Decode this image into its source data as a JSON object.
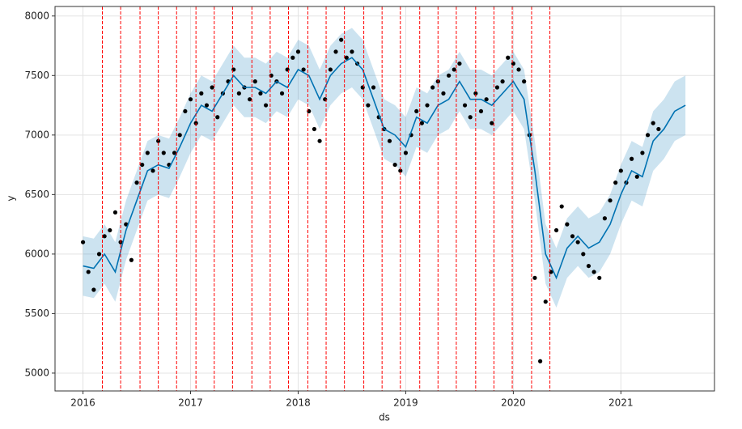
{
  "chart_data": {
    "type": "forecast",
    "x_label": "ds",
    "y_label": "y",
    "xlim": [
      2015.74,
      2021.87
    ],
    "ylim": [
      4850,
      8080
    ],
    "xticks": [
      2016,
      2017,
      2018,
      2019,
      2020,
      2021
    ],
    "yticks": [
      5000,
      5500,
      6000,
      6500,
      7000,
      7500,
      8000
    ],
    "grid": true,
    "observed": {
      "color": "#000000",
      "x": [
        2016.0,
        2016.05,
        2016.1,
        2016.15,
        2016.2,
        2016.25,
        2016.3,
        2016.35,
        2016.4,
        2016.45,
        2016.5,
        2016.55,
        2016.6,
        2016.65,
        2016.7,
        2016.75,
        2016.8,
        2016.85,
        2016.9,
        2016.95,
        2017.0,
        2017.05,
        2017.1,
        2017.15,
        2017.2,
        2017.25,
        2017.3,
        2017.35,
        2017.4,
        2017.45,
        2017.5,
        2017.55,
        2017.6,
        2017.65,
        2017.7,
        2017.75,
        2017.8,
        2017.85,
        2017.9,
        2017.95,
        2018.0,
        2018.05,
        2018.1,
        2018.15,
        2018.2,
        2018.25,
        2018.3,
        2018.35,
        2018.4,
        2018.45,
        2018.5,
        2018.55,
        2018.6,
        2018.65,
        2018.7,
        2018.75,
        2018.8,
        2018.85,
        2018.9,
        2018.95,
        2019.0,
        2019.05,
        2019.1,
        2019.15,
        2019.2,
        2019.25,
        2019.3,
        2019.35,
        2019.4,
        2019.45,
        2019.5,
        2019.55,
        2019.6,
        2019.65,
        2019.7,
        2019.75,
        2019.8,
        2019.85,
        2019.9,
        2019.95,
        2020.0,
        2020.05,
        2020.1,
        2020.15,
        2020.2,
        2020.25,
        2020.3,
        2020.35,
        2020.4,
        2020.45,
        2020.5,
        2020.55,
        2020.6,
        2020.65,
        2020.7,
        2020.75,
        2020.8,
        2020.85,
        2020.9,
        2020.95,
        2021.0,
        2021.05,
        2021.1,
        2021.15,
        2021.2,
        2021.25,
        2021.3,
        2021.35
      ],
      "y": [
        6100,
        5850,
        5700,
        6000,
        6150,
        6200,
        6350,
        6100,
        6250,
        5950,
        6600,
        6750,
        6850,
        6700,
        6950,
        6850,
        6750,
        6850,
        7000,
        7200,
        7300,
        7100,
        7350,
        7250,
        7400,
        7150,
        7350,
        7450,
        7550,
        7350,
        7400,
        7300,
        7450,
        7350,
        7250,
        7500,
        7450,
        7350,
        7550,
        7650,
        7700,
        7550,
        7200,
        7050,
        6950,
        7300,
        7550,
        7700,
        7800,
        7650,
        7700,
        7600,
        7400,
        7250,
        7400,
        7150,
        7050,
        6950,
        6750,
        6700,
        6850,
        7000,
        7200,
        7100,
        7250,
        7400,
        7450,
        7350,
        7500,
        7550,
        7600,
        7250,
        7150,
        7350,
        7200,
        7300,
        7100,
        7400,
        7450,
        7650,
        7600,
        7550,
        7450,
        7000,
        5800,
        5100,
        5600,
        5850,
        6200,
        6400,
        6250,
        6150,
        6100,
        6000,
        5900,
        5850,
        5800,
        6300,
        6450,
        6600,
        6700,
        6600,
        6800,
        6650,
        6850,
        7000,
        7100,
        7050
      ]
    },
    "forecast": {
      "color": "#0072b2",
      "x": [
        2016.0,
        2016.1,
        2016.2,
        2016.3,
        2016.4,
        2016.5,
        2016.6,
        2016.7,
        2016.8,
        2016.9,
        2017.0,
        2017.1,
        2017.2,
        2017.3,
        2017.4,
        2017.5,
        2017.6,
        2017.7,
        2017.8,
        2017.9,
        2018.0,
        2018.1,
        2018.2,
        2018.3,
        2018.4,
        2018.5,
        2018.6,
        2018.7,
        2018.8,
        2018.9,
        2019.0,
        2019.1,
        2019.2,
        2019.3,
        2019.4,
        2019.5,
        2019.6,
        2019.7,
        2019.8,
        2019.9,
        2020.0,
        2020.1,
        2020.2,
        2020.3,
        2020.4,
        2020.5,
        2020.6,
        2020.7,
        2020.8,
        2020.9,
        2021.0,
        2021.1,
        2021.2,
        2021.3,
        2021.4,
        2021.5,
        2021.6
      ],
      "yhat": [
        5900,
        5880,
        6000,
        5850,
        6200,
        6450,
        6700,
        6750,
        6720,
        6900,
        7100,
        7250,
        7200,
        7350,
        7500,
        7400,
        7400,
        7350,
        7450,
        7400,
        7550,
        7500,
        7300,
        7500,
        7600,
        7650,
        7550,
        7300,
        7050,
        7000,
        6900,
        7150,
        7100,
        7250,
        7300,
        7450,
        7300,
        7300,
        7250,
        7350,
        7450,
        7300,
        6700,
        6000,
        5800,
        6050,
        6150,
        6050,
        6100,
        6250,
        6500,
        6700,
        6650,
        6950,
        7050,
        7200,
        7250
      ],
      "yhat_upper": [
        6150,
        6130,
        6250,
        6100,
        6450,
        6700,
        6950,
        7000,
        6970,
        7150,
        7350,
        7500,
        7450,
        7600,
        7750,
        7650,
        7650,
        7600,
        7700,
        7650,
        7800,
        7750,
        7550,
        7750,
        7850,
        7900,
        7800,
        7550,
        7300,
        7250,
        7150,
        7400,
        7350,
        7500,
        7550,
        7700,
        7550,
        7550,
        7500,
        7600,
        7700,
        7550,
        6950,
        6250,
        6050,
        6300,
        6400,
        6300,
        6350,
        6500,
        6750,
        6950,
        6900,
        7200,
        7300,
        7450,
        7500
      ],
      "yhat_lower": [
        5650,
        5630,
        5750,
        5600,
        5950,
        6200,
        6450,
        6500,
        6470,
        6650,
        6850,
        7000,
        6950,
        7100,
        7250,
        7150,
        7150,
        7100,
        7200,
        7150,
        7300,
        7250,
        7050,
        7250,
        7350,
        7400,
        7300,
        7050,
        6800,
        6750,
        6650,
        6900,
        6850,
        7000,
        7050,
        7200,
        7050,
        7050,
        7000,
        7100,
        7200,
        7050,
        6450,
        5750,
        5550,
        5800,
        5900,
        5800,
        5850,
        6000,
        6250,
        6450,
        6400,
        6700,
        6800,
        6950,
        7000
      ]
    },
    "changepoint_color": "#ff0000",
    "changepoints": [
      2016.18,
      2016.35,
      2016.53,
      2016.7,
      2016.87,
      2017.05,
      2017.22,
      2017.39,
      2017.57,
      2017.74,
      2017.91,
      2018.09,
      2018.26,
      2018.43,
      2018.61,
      2018.78,
      2018.95,
      2019.13,
      2019.3,
      2019.47,
      2019.65,
      2019.82,
      2019.99,
      2020.17,
      2020.34
    ]
  }
}
